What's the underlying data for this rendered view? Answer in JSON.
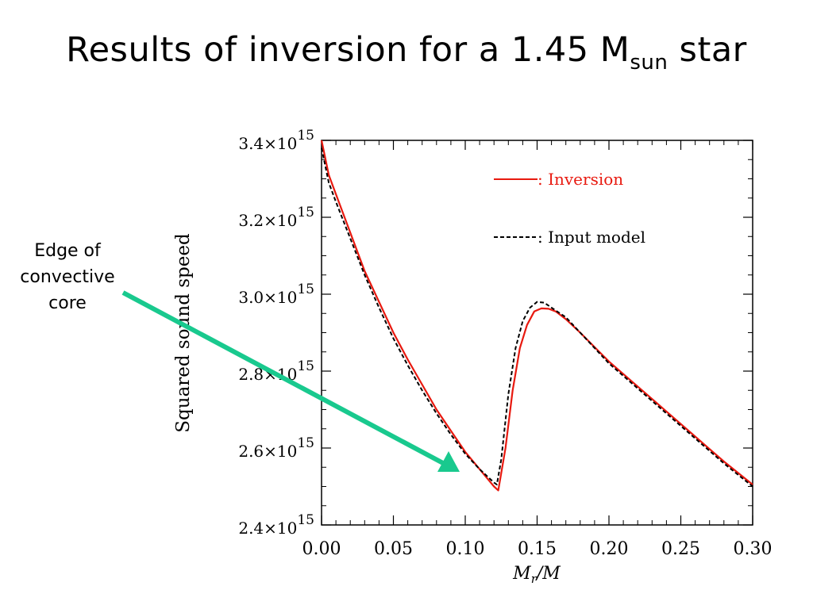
{
  "slide": {
    "title_main": "Results of inversion for a 1.45 M",
    "title_sub": "sun",
    "title_tail": " star"
  },
  "annotation": {
    "text_lines": [
      "Edge of",
      "convective",
      "core"
    ],
    "arrow_color": "#19c98e"
  },
  "chart_data": {
    "type": "line",
    "title": "",
    "xlabel_base": "M",
    "xlabel_sub": "r",
    "xlabel_tail": "/M",
    "ylabel": "Squared sound speed",
    "xlim": [
      0.0,
      0.3
    ],
    "ylim": [
      2400000000000000.0,
      3400000000000000.0
    ],
    "x_ticks": [
      0.0,
      0.05,
      0.1,
      0.15,
      0.2,
      0.25,
      0.3
    ],
    "x_tick_labels": [
      "0.00",
      "0.05",
      "0.10",
      "0.15",
      "0.20",
      "0.25",
      "0.30"
    ],
    "y_ticks": [
      2400000000000000.0,
      2600000000000000.0,
      2800000000000000.0,
      3000000000000000.0,
      3200000000000000.0,
      3400000000000000.0
    ],
    "y_tick_mantissas": [
      "2.4",
      "2.6",
      "2.8",
      "3.0",
      "3.2",
      "3.4"
    ],
    "y_tick_exponent": "15",
    "legend_position": "top-right",
    "grid": false,
    "series": [
      {
        "name": ": Inversion",
        "color": "#e8190f",
        "dash": "solid",
        "x": [
          0.0,
          0.005,
          0.01,
          0.02,
          0.03,
          0.04,
          0.05,
          0.06,
          0.07,
          0.08,
          0.09,
          0.1,
          0.11,
          0.12,
          0.123,
          0.128,
          0.133,
          0.138,
          0.143,
          0.148,
          0.153,
          0.158,
          0.163,
          0.17,
          0.18,
          0.2,
          0.22,
          0.24,
          0.26,
          0.28,
          0.3
        ],
        "y": [
          3400000000000000.0,
          3310000000000000.0,
          3260000000000000.0,
          3160000000000000.0,
          3060000000000000.0,
          2980000000000000.0,
          2900000000000000.0,
          2830000000000000.0,
          2765000000000000.0,
          2700000000000000.0,
          2645000000000000.0,
          2590000000000000.0,
          2545000000000000.0,
          2500000000000000.0,
          2490000000000000.0,
          2600000000000000.0,
          2750000000000000.0,
          2860000000000000.0,
          2920000000000000.0,
          2955000000000000.0,
          2963000000000000.0,
          2962000000000000.0,
          2955000000000000.0,
          2935000000000000.0,
          2900000000000000.0,
          2825000000000000.0,
          2760000000000000.0,
          2695000000000000.0,
          2630000000000000.0,
          2565000000000000.0,
          2505000000000000.0
        ]
      },
      {
        "name": ": Input model",
        "color": "#000000",
        "dash": "dashed",
        "x": [
          0.0,
          0.005,
          0.01,
          0.02,
          0.03,
          0.04,
          0.05,
          0.06,
          0.07,
          0.08,
          0.09,
          0.1,
          0.11,
          0.12,
          0.122,
          0.125,
          0.13,
          0.135,
          0.14,
          0.145,
          0.15,
          0.155,
          0.16,
          0.17,
          0.18,
          0.2,
          0.22,
          0.24,
          0.26,
          0.28,
          0.3
        ],
        "y": [
          3380000000000000.0,
          3290000000000000.0,
          3240000000000000.0,
          3145000000000000.0,
          3050000000000000.0,
          2965000000000000.0,
          2885000000000000.0,
          2815000000000000.0,
          2750000000000000.0,
          2690000000000000.0,
          2635000000000000.0,
          2585000000000000.0,
          2545000000000000.0,
          2510000000000000.0,
          2505000000000000.0,
          2570000000000000.0,
          2740000000000000.0,
          2860000000000000.0,
          2930000000000000.0,
          2965000000000000.0,
          2980000000000000.0,
          2978000000000000.0,
          2965000000000000.0,
          2940000000000000.0,
          2900000000000000.0,
          2820000000000000.0,
          2755000000000000.0,
          2690000000000000.0,
          2625000000000000.0,
          2560000000000000.0,
          2500000000000000.0
        ]
      }
    ]
  }
}
